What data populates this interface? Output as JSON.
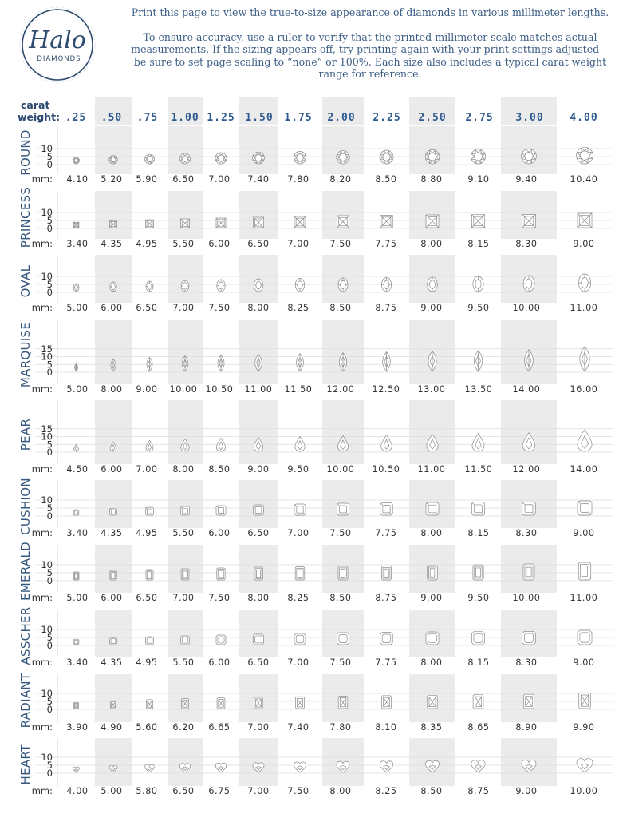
{
  "brand": {
    "logo_text": "Halo",
    "logo_subtext": "DIAMONDS",
    "accent_color": "#2e5a90"
  },
  "header": {
    "line1": "Print this page to view the true-to-size appearance of diamonds in various millimeter lengths.",
    "line2": "To ensure accuracy, use a ruler to verify that the printed millimeter scale matches actual measurements. If the sizing appears off, try printing again with your print settings adjusted—be sure to set page scaling to “none” or 100%. Each size also includes a typical carat weight range for reference."
  },
  "chart_data": {
    "type": "table",
    "carat_label_line1": "carat",
    "carat_label_line2": "weight:",
    "mm_label": "mm:",
    "carat_weights": [
      ".25",
      ".50",
      ".75",
      "1.00",
      "1.25",
      "1.50",
      "1.75",
      "2.00",
      "2.25",
      "2.50",
      "2.75",
      "3.00",
      "4.00"
    ],
    "shapes": [
      {
        "name": "ROUND",
        "shape": "round",
        "yticks": [
          "10",
          "5",
          "0"
        ],
        "mm": [
          "4.10",
          "5.20",
          "5.90",
          "6.50",
          "7.00",
          "7.40",
          "7.80",
          "8.20",
          "8.50",
          "8.80",
          "9.10",
          "9.40",
          "10.40"
        ],
        "w": [
          4.1,
          5.2,
          5.9,
          6.5,
          7.0,
          7.4,
          7.8,
          8.2,
          8.5,
          8.8,
          9.1,
          9.4,
          10.4
        ],
        "h": [
          4.1,
          5.2,
          5.9,
          6.5,
          7.0,
          7.4,
          7.8,
          8.2,
          8.5,
          8.8,
          9.1,
          9.4,
          10.4
        ]
      },
      {
        "name": "PRINCESS",
        "shape": "princess",
        "yticks": [
          "10",
          "5",
          "0"
        ],
        "mm": [
          "3.40",
          "4.35",
          "4.95",
          "5.50",
          "6.00",
          "6.50",
          "7.00",
          "7.50",
          "7.75",
          "8.00",
          "8.15",
          "8.30",
          "9.00"
        ],
        "w": [
          3.4,
          4.35,
          4.95,
          5.5,
          6.0,
          6.5,
          7.0,
          7.5,
          7.75,
          8.0,
          8.15,
          8.3,
          9.0
        ],
        "h": [
          3.4,
          4.35,
          4.95,
          5.5,
          6.0,
          6.5,
          7.0,
          7.5,
          7.75,
          8.0,
          8.15,
          8.3,
          9.0
        ]
      },
      {
        "name": "OVAL",
        "shape": "oval",
        "yticks": [
          "10",
          "5",
          "0"
        ],
        "mm": [
          "5.00",
          "6.00",
          "6.50",
          "7.00",
          "7.50",
          "8.00",
          "8.25",
          "8.50",
          "8.75",
          "9.00",
          "9.50",
          "10.00",
          "11.00"
        ],
        "w": [
          3.5,
          4.2,
          4.5,
          4.9,
          5.2,
          5.6,
          5.8,
          6.0,
          6.1,
          6.3,
          6.6,
          7.0,
          7.7
        ],
        "h": [
          5.0,
          6.0,
          6.5,
          7.0,
          7.5,
          8.0,
          8.25,
          8.5,
          8.75,
          9.0,
          9.5,
          10.0,
          11.0
        ]
      },
      {
        "name": "MARQUISE",
        "shape": "marquise",
        "yticks": [
          "15",
          "10",
          "5",
          "0"
        ],
        "mm": [
          "5.00",
          "8.00",
          "9.00",
          "10.00",
          "10.50",
          "11.00",
          "11.50",
          "12.00",
          "12.50",
          "13.00",
          "13.50",
          "14.00",
          "16.00"
        ],
        "w": [
          2.5,
          4.0,
          4.5,
          5.0,
          5.2,
          5.5,
          5.7,
          6.0,
          6.2,
          6.5,
          6.7,
          7.0,
          8.0
        ],
        "h": [
          5.0,
          8.0,
          9.0,
          10.0,
          10.5,
          11.0,
          11.5,
          12.0,
          12.5,
          13.0,
          13.5,
          14.0,
          16.0
        ]
      },
      {
        "name": "PEAR",
        "shape": "pear",
        "yticks": [
          "15",
          "10",
          "5",
          "0"
        ],
        "mm": [
          "4.50",
          "6.00",
          "7.00",
          "8.00",
          "8.50",
          "9.00",
          "9.50",
          "10.00",
          "10.50",
          "11.00",
          "11.50",
          "12.00",
          "14.00"
        ],
        "w": [
          3.0,
          4.0,
          4.7,
          5.3,
          5.7,
          6.0,
          6.3,
          6.7,
          7.0,
          7.3,
          7.7,
          8.0,
          9.3
        ],
        "h": [
          4.5,
          6.0,
          7.0,
          8.0,
          8.5,
          9.0,
          9.5,
          10.0,
          10.5,
          11.0,
          11.5,
          12.0,
          14.0
        ]
      },
      {
        "name": "CUSHION",
        "shape": "cushion",
        "yticks": [
          "10",
          "5",
          "0"
        ],
        "mm": [
          "3.40",
          "4.35",
          "4.95",
          "5.50",
          "6.00",
          "6.50",
          "7.00",
          "7.50",
          "7.75",
          "8.00",
          "8.15",
          "8.30",
          "9.00"
        ],
        "w": [
          3.4,
          4.35,
          4.95,
          5.5,
          6.0,
          6.5,
          7.0,
          7.5,
          7.75,
          8.0,
          8.15,
          8.3,
          9.0
        ],
        "h": [
          3.4,
          4.35,
          4.95,
          5.5,
          6.0,
          6.5,
          7.0,
          7.5,
          7.75,
          8.0,
          8.15,
          8.3,
          9.0
        ]
      },
      {
        "name": "EMERALD",
        "shape": "emerald",
        "yticks": [
          "10",
          "5",
          "0"
        ],
        "mm": [
          "5.00",
          "6.00",
          "6.50",
          "7.00",
          "7.50",
          "8.00",
          "8.25",
          "8.50",
          "8.75",
          "9.00",
          "9.50",
          "10.00",
          "11.00"
        ],
        "w": [
          3.5,
          4.2,
          4.5,
          4.9,
          5.2,
          5.6,
          5.8,
          6.0,
          6.1,
          6.3,
          6.6,
          7.0,
          7.7
        ],
        "h": [
          5.0,
          6.0,
          6.5,
          7.0,
          7.5,
          8.0,
          8.25,
          8.5,
          8.75,
          9.0,
          9.5,
          10.0,
          11.0
        ]
      },
      {
        "name": "ASSCHER",
        "shape": "asscher",
        "yticks": [
          "10",
          "5",
          "0"
        ],
        "mm": [
          "3.40",
          "4.35",
          "4.95",
          "5.50",
          "6.00",
          "6.50",
          "7.00",
          "7.50",
          "7.75",
          "8.00",
          "8.15",
          "8.30",
          "9.00"
        ],
        "w": [
          3.4,
          4.35,
          4.95,
          5.5,
          6.0,
          6.5,
          7.0,
          7.5,
          7.75,
          8.0,
          8.15,
          8.3,
          9.0
        ],
        "h": [
          3.4,
          4.35,
          4.95,
          5.5,
          6.0,
          6.5,
          7.0,
          7.5,
          7.75,
          8.0,
          8.15,
          8.3,
          9.0
        ]
      },
      {
        "name": "RADIANT",
        "shape": "radiant",
        "yticks": [
          "10",
          "5",
          "0"
        ],
        "mm": [
          "3.90",
          "4.90",
          "5.60",
          "6.20",
          "6.65",
          "7.00",
          "7.40",
          "7.80",
          "8.10",
          "8.35",
          "8.65",
          "8.90",
          "9.90"
        ],
        "w": [
          2.9,
          3.6,
          4.1,
          4.6,
          4.9,
          5.2,
          5.5,
          5.8,
          6.0,
          6.2,
          6.4,
          6.6,
          7.3
        ],
        "h": [
          3.9,
          4.9,
          5.6,
          6.2,
          6.65,
          7.0,
          7.4,
          7.8,
          8.1,
          8.35,
          8.65,
          8.9,
          9.9
        ]
      },
      {
        "name": "HEART",
        "shape": "heart",
        "yticks": [
          "10",
          "5",
          "0"
        ],
        "mm": [
          "4.00",
          "5.00",
          "5.80",
          "6.50",
          "6.75",
          "7.00",
          "7.50",
          "8.00",
          "8.25",
          "8.50",
          "8.75",
          "9.00",
          "10.00"
        ],
        "w": [
          4.0,
          5.0,
          5.8,
          6.5,
          6.75,
          7.0,
          7.5,
          8.0,
          8.25,
          8.5,
          8.75,
          9.0,
          10.0
        ],
        "h": [
          3.6,
          4.5,
          5.2,
          5.85,
          6.1,
          6.3,
          6.75,
          7.2,
          7.4,
          7.65,
          7.9,
          8.1,
          9.0
        ]
      }
    ]
  }
}
